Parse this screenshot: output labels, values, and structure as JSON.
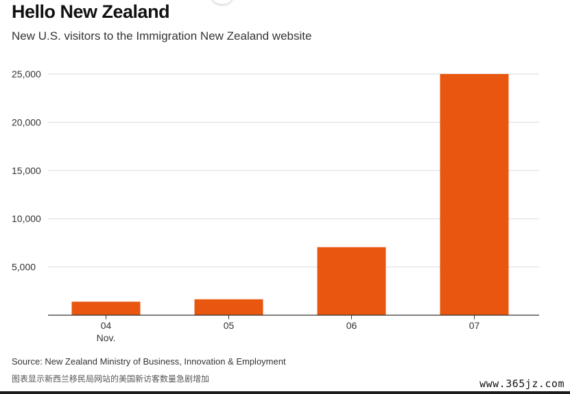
{
  "header": {
    "title": "Hello New Zealand",
    "subtitle": "New U.S. visitors to the Immigration New Zealand website"
  },
  "footer": {
    "source": "Source: New Zealand Ministry of Business, Innovation & Employment",
    "caption": "图表显示新西兰移民局网站的美国新访客数量急剧增加",
    "watermark": "www.365jz.com"
  },
  "colors": {
    "bar": "#e8560f",
    "grid": "#d9d9d9",
    "axis": "#333333"
  },
  "chart_data": {
    "type": "bar",
    "title": "Hello New Zealand",
    "subtitle": "New U.S. visitors to the Immigration New Zealand website",
    "categories": [
      "04",
      "05",
      "06",
      "07"
    ],
    "category_sublabels": [
      "Nov.",
      "",
      "",
      ""
    ],
    "values": [
      1400,
      1650,
      7050,
      25000
    ],
    "yticks": [
      5000,
      10000,
      15000,
      20000,
      25000
    ],
    "ytick_labels": [
      "5,000",
      "10,000",
      "15,000",
      "20,000",
      "25,000"
    ],
    "ylim": [
      0,
      25000
    ],
    "xlabel": "",
    "ylabel": "",
    "grid": true,
    "legend": "none"
  }
}
